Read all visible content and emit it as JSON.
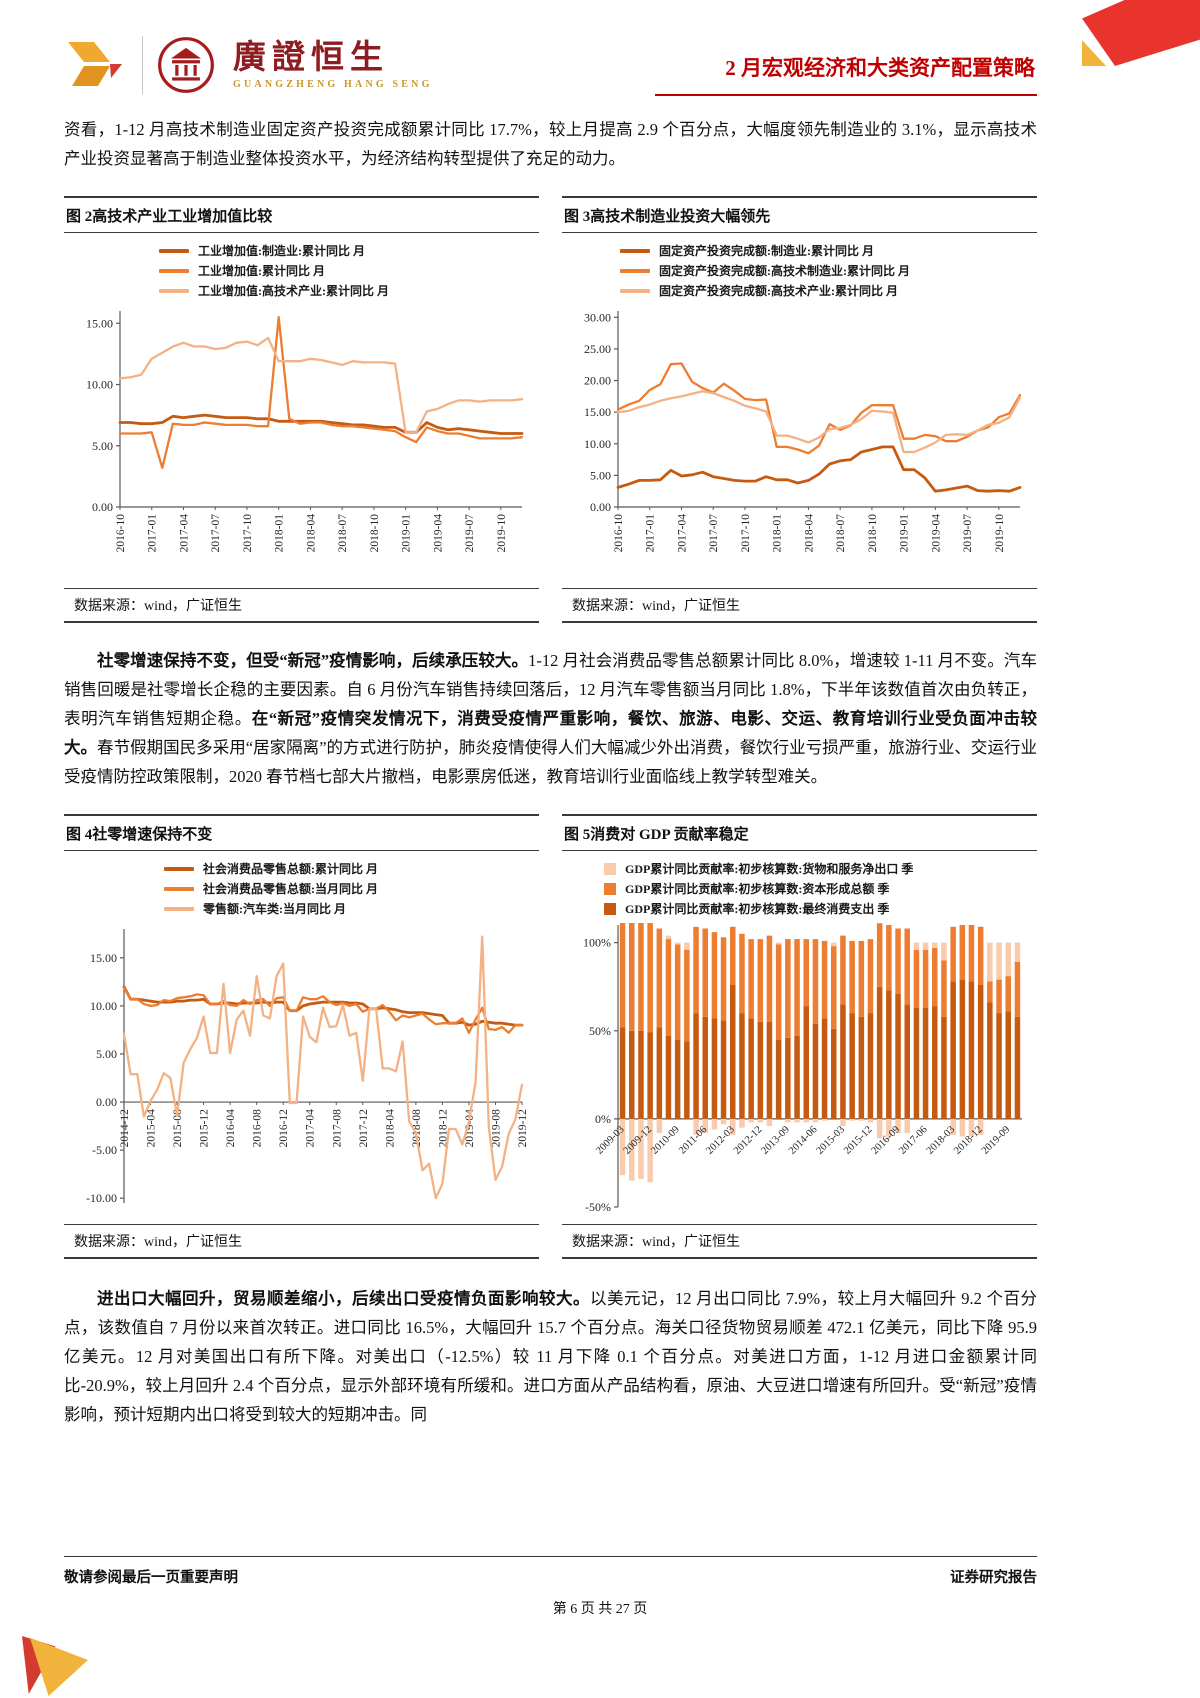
{
  "header": {
    "brand_cn": "廣證恒生",
    "brand_en": "GUANGZHENG HANG SENG",
    "report_title": "2 月宏观经济和大类资产配置策略"
  },
  "paragraphs": {
    "p1": {
      "runs": [
        {
          "text": "资看，1-12 月高技术制造业固定资产投资完成额累计同比 17.7%，较上月提高 2.9 个百分点，大幅度领先制造业的 3.1%，显示高技术产业投资显著高于制造业整体投资水平，为经济结构转型提供了充足的动力。"
        }
      ]
    },
    "p2": {
      "runs": [
        {
          "text": "社零增速保持不变，但受“新冠”疫情影响，后续承压较大。"
        },
        {
          "text": "1-12 月社会消费品零售总额累计同比 8.0%，增速较 1-11 月不变。汽车销售回暖是社零增长企稳的主要因素。自 6 月份汽车销售持续回落后，12 月汽车零售额当月同比 1.8%，下半年该数值首次由负转正，表明汽车销售短期企稳。"
        },
        {
          "text": "在“新冠”疫情突发情况下，消费受疫情严重影响，餐饮、旅游、电影、交运、教育培训行业受负面冲击较大。"
        },
        {
          "text": "春节假期国民多采用“居家隔离”的方式进行防护，肺炎疫情使得人们大幅减少外出消费，餐饮行业亏损严重，旅游行业、交运行业受疫情防控政策限制，2020 春节档七部大片撤档，电影票房低迷，教育培训行业面临线上教学转型难关。"
        }
      ]
    },
    "p3": {
      "runs": [
        {
          "text": "进出口大幅回升，贸易顺差缩小，后续出口受疫情负面影响较大。"
        },
        {
          "text": "以美元记，12 月出口同比 7.9%，较上月大幅回升 9.2 个百分点，该数值自 7 月份以来首次转正。进口同比 16.5%，大幅回升 15.7 个百分点。海关口径货物贸易顺差 472.1 亿美元，同比下降 95.9 亿美元。12 月对美国出口有所下降。对美出口（-12.5%）较 11 月下降 0.1 个百分点。对美进口方面，1-12 月进口金额累计同比-20.9%，较上月回升 2.4 个百分点，显示外部环境有所缓和。进口方面从产品结构看，原油、大豆进口增速有所回升。受“新冠”疫情影响，预计短期内出口将受到较大的短期冲击。同"
        }
      ]
    }
  },
  "figures": [
    {
      "title": "图 2高技术产业工业增加值比较",
      "source": "数据来源：wind，广证恒生"
    },
    {
      "title": "图 3高技术制造业投资大幅领先",
      "source": "数据来源：wind，广证恒生"
    },
    {
      "title": "图 4社零增速保持不变",
      "source": "数据来源：wind，广证恒生"
    },
    {
      "title": "图 5消费对 GDP 贡献率稳定",
      "source": "数据来源：wind，广证恒生"
    }
  ],
  "footer": {
    "left": "敬请参阅最后一页重要声明",
    "right": "证券研究报告",
    "page_info": "第 6 页 共 27 页"
  },
  "colors": {
    "accent_red": "#C00000",
    "brand_red": "#8E1D22",
    "brand_gold": "#C9972B",
    "orange_dark": "#C55A11",
    "orange_mid": "#ED7D31",
    "orange_light": "#F4B183",
    "orange_pale": "#F8CBAD"
  },
  "chart_data": [
    {
      "type": "line",
      "title": "高技术产业工业增加值比较",
      "ylim": [
        0,
        16
      ],
      "yticks": [
        0,
        5,
        10,
        15
      ],
      "yfmt": "fixed2",
      "tick_step": 3,
      "grid": false,
      "legend_position": "top",
      "x": [
        "2016-10",
        "2016-11",
        "2016-12",
        "2017-01",
        "2017-02",
        "2017-03",
        "2017-04",
        "2017-05",
        "2017-06",
        "2017-07",
        "2017-08",
        "2017-09",
        "2017-10",
        "2017-11",
        "2017-12",
        "2018-01",
        "2018-02",
        "2018-03",
        "2018-04",
        "2018-05",
        "2018-06",
        "2018-07",
        "2018-08",
        "2018-09",
        "2018-10",
        "2018-11",
        "2018-12",
        "2019-01",
        "2019-02",
        "2019-03",
        "2019-04",
        "2019-05",
        "2019-06",
        "2019-07",
        "2019-08",
        "2019-09",
        "2019-10",
        "2019-11",
        "2019-12"
      ],
      "series": [
        {
          "name": "工业增加值:制造业:累计同比 月",
          "color": "#C55A11",
          "values": [
            6.9,
            6.9,
            6.8,
            6.8,
            6.9,
            7.4,
            7.3,
            7.4,
            7.5,
            7.4,
            7.3,
            7.3,
            7.3,
            7.2,
            7.2,
            7.0,
            7.0,
            7.0,
            7.0,
            7.0,
            6.9,
            6.8,
            6.7,
            6.7,
            6.6,
            6.5,
            6.5,
            6.1,
            6.1,
            6.9,
            6.5,
            6.3,
            6.4,
            6.3,
            6.2,
            6.1,
            6.0,
            6.0,
            6.0
          ]
        },
        {
          "name": "工业增加值:累计同比 月",
          "color": "#ED7D31",
          "values": [
            6.0,
            6.0,
            6.0,
            6.1,
            3.2,
            6.8,
            6.7,
            6.7,
            6.9,
            6.8,
            6.7,
            6.7,
            6.7,
            6.6,
            6.6,
            15.5,
            7.2,
            6.8,
            6.9,
            6.9,
            6.7,
            6.6,
            6.6,
            6.5,
            6.4,
            6.3,
            6.2,
            5.7,
            5.3,
            6.5,
            6.2,
            6.0,
            6.0,
            5.8,
            5.6,
            5.6,
            5.6,
            5.6,
            5.7
          ]
        },
        {
          "name": "工业增加值:高技术产业:累计同比 月",
          "color": "#F4B183",
          "values": [
            10.5,
            10.6,
            10.8,
            12.1,
            12.6,
            13.1,
            13.4,
            13.1,
            13.1,
            12.9,
            13.0,
            13.4,
            13.5,
            13.2,
            13.8,
            11.9,
            11.9,
            11.9,
            12.1,
            12.0,
            11.8,
            11.6,
            11.9,
            11.8,
            11.8,
            11.8,
            11.7,
            6.1,
            6.1,
            7.8,
            8.0,
            8.4,
            8.7,
            8.7,
            8.6,
            8.7,
            8.7,
            8.7,
            8.8
          ]
        }
      ]
    },
    {
      "type": "line",
      "title": "高技术制造业投资大幅领先",
      "ylim": [
        0,
        31
      ],
      "yticks": [
        0,
        5,
        10,
        15,
        20,
        25,
        30
      ],
      "yfmt": "fixed2",
      "tick_step": 3,
      "grid": false,
      "legend_position": "top",
      "x": [
        "2016-10",
        "2016-11",
        "2016-12",
        "2017-01",
        "2017-02",
        "2017-03",
        "2017-04",
        "2017-05",
        "2017-06",
        "2017-07",
        "2017-08",
        "2017-09",
        "2017-10",
        "2017-11",
        "2017-12",
        "2018-01",
        "2018-02",
        "2018-03",
        "2018-04",
        "2018-05",
        "2018-06",
        "2018-07",
        "2018-08",
        "2018-09",
        "2018-10",
        "2018-11",
        "2018-12",
        "2019-01",
        "2019-02",
        "2019-03",
        "2019-04",
        "2019-05",
        "2019-06",
        "2019-07",
        "2019-08",
        "2019-09",
        "2019-10",
        "2019-11",
        "2019-12"
      ],
      "series": [
        {
          "name": "固定资产投资完成额:制造业:累计同比 月",
          "color": "#C55A11",
          "values": [
            3.1,
            3.6,
            4.2,
            4.2,
            4.3,
            5.8,
            4.9,
            5.1,
            5.5,
            4.8,
            4.5,
            4.2,
            4.1,
            4.1,
            4.8,
            4.3,
            4.3,
            3.8,
            4.2,
            5.2,
            6.8,
            7.3,
            7.5,
            8.7,
            9.1,
            9.5,
            9.5,
            5.9,
            5.9,
            4.6,
            2.5,
            2.7,
            3.0,
            3.3,
            2.6,
            2.5,
            2.6,
            2.5,
            3.1
          ]
        },
        {
          "name": "固定资产投资完成额:高技术制造业:累计同比 月",
          "color": "#ED7D31",
          "values": [
            15.4,
            16.2,
            16.8,
            18.5,
            19.4,
            22.6,
            22.7,
            19.8,
            18.8,
            18.1,
            19.5,
            18.4,
            17.1,
            16.9,
            17.0,
            9.5,
            9.5,
            9.1,
            8.5,
            9.7,
            13.1,
            12.2,
            12.9,
            14.9,
            16.1,
            16.1,
            16.1,
            10.8,
            10.8,
            11.4,
            11.2,
            10.4,
            10.4,
            11.1,
            12.1,
            12.6,
            14.2,
            14.8,
            17.7
          ]
        },
        {
          "name": "固定资产投资完成额:高技术产业:累计同比 月",
          "color": "#F4B183",
          "values": [
            15.0,
            15.2,
            15.8,
            16.2,
            16.8,
            17.2,
            17.5,
            17.9,
            18.3,
            18.0,
            17.4,
            16.8,
            16.0,
            15.6,
            15.1,
            11.3,
            11.3,
            10.8,
            10.2,
            11.0,
            12.3,
            12.5,
            13.0,
            13.9,
            15.2,
            15.1,
            14.9,
            8.7,
            8.7,
            9.4,
            10.2,
            11.4,
            11.5,
            11.4,
            12.1,
            13.0,
            13.3,
            14.2,
            17.3
          ]
        }
      ]
    },
    {
      "type": "line",
      "title": "社零增速保持不变",
      "ylim": [
        -10.5,
        18
      ],
      "yticks": [
        -10,
        -5,
        0,
        5,
        10,
        15
      ],
      "yfmt": "fixed2",
      "tick_step": 4,
      "grid": false,
      "legend_position": "top",
      "x": [
        "2014-12",
        "2015-01",
        "2015-02",
        "2015-03",
        "2015-04",
        "2015-05",
        "2015-06",
        "2015-07",
        "2015-08",
        "2015-09",
        "2015-10",
        "2015-11",
        "2015-12",
        "2016-01",
        "2016-02",
        "2016-03",
        "2016-04",
        "2016-05",
        "2016-06",
        "2016-07",
        "2016-08",
        "2016-09",
        "2016-10",
        "2016-11",
        "2016-12",
        "2017-01",
        "2017-02",
        "2017-03",
        "2017-04",
        "2017-05",
        "2017-06",
        "2017-07",
        "2017-08",
        "2017-09",
        "2017-10",
        "2017-11",
        "2017-12",
        "2018-01",
        "2018-02",
        "2018-03",
        "2018-04",
        "2018-05",
        "2018-06",
        "2018-07",
        "2018-08",
        "2018-09",
        "2018-10",
        "2018-11",
        "2018-12",
        "2019-01",
        "2019-02",
        "2019-03",
        "2019-04",
        "2019-05",
        "2019-06",
        "2019-07",
        "2019-08",
        "2019-09",
        "2019-10",
        "2019-11",
        "2019-12"
      ],
      "series": [
        {
          "name": "社会消费品零售总额:累计同比 月",
          "color": "#C55A11",
          "values": [
            12.0,
            10.7,
            10.7,
            10.6,
            10.5,
            10.4,
            10.4,
            10.4,
            10.5,
            10.5,
            10.6,
            10.6,
            10.7,
            10.2,
            10.2,
            10.3,
            10.3,
            10.2,
            10.3,
            10.3,
            10.3,
            10.4,
            10.3,
            10.4,
            10.4,
            9.5,
            9.5,
            10.0,
            10.2,
            10.3,
            10.4,
            10.4,
            10.4,
            10.4,
            10.3,
            10.3,
            10.2,
            9.7,
            9.7,
            9.8,
            9.7,
            9.6,
            9.4,
            9.3,
            9.3,
            9.3,
            9.2,
            9.1,
            9.0,
            8.2,
            8.2,
            8.3,
            8.0,
            8.1,
            8.4,
            8.3,
            8.2,
            8.2,
            8.1,
            8.0,
            8.0
          ]
        },
        {
          "name": "社会消费品零售总额:当月同比 月",
          "color": "#ED7D31",
          "values": [
            11.9,
            10.7,
            10.7,
            10.2,
            10.0,
            10.1,
            10.6,
            10.5,
            10.8,
            10.9,
            11.0,
            11.2,
            11.1,
            10.2,
            10.2,
            10.5,
            10.1,
            10.0,
            10.6,
            10.2,
            10.6,
            10.7,
            10.0,
            10.8,
            10.9,
            9.5,
            9.5,
            10.9,
            10.7,
            10.7,
            11.0,
            10.4,
            10.1,
            10.3,
            10.0,
            10.2,
            9.4,
            9.7,
            9.7,
            10.1,
            9.4,
            8.5,
            9.0,
            8.8,
            9.0,
            9.2,
            8.6,
            8.1,
            8.2,
            8.2,
            8.2,
            8.7,
            7.2,
            8.6,
            9.8,
            7.6,
            7.5,
            7.8,
            7.2,
            8.0,
            8.0
          ]
        },
        {
          "name": "零售额:汽车类:当月同比 月",
          "color": "#F4B183",
          "values": [
            7.1,
            2.9,
            2.9,
            -1.5,
            0.1,
            1.3,
            3.0,
            2.5,
            -1.4,
            4.1,
            5.5,
            6.7,
            8.9,
            5.1,
            5.1,
            12.3,
            5.1,
            8.6,
            9.5,
            6.9,
            13.1,
            9.0,
            8.7,
            13.1,
            14.4,
            -0.1,
            -0.1,
            8.9,
            6.8,
            6.2,
            9.8,
            7.8,
            7.9,
            10.1,
            6.9,
            7.2,
            2.2,
            9.7,
            9.7,
            3.5,
            3.5,
            3.2,
            6.3,
            -2.0,
            -3.2,
            -7.1,
            -6.4,
            -10.0,
            -8.5,
            -2.8,
            -2.8,
            -4.4,
            -2.1,
            2.1,
            17.2,
            -2.6,
            -8.1,
            -6.7,
            -3.3,
            -1.8,
            1.8
          ]
        }
      ]
    },
    {
      "type": "bar",
      "title": "消费对 GDP 贡献率稳定",
      "stacked": true,
      "ylim": [
        -50,
        110
      ],
      "yticks": [
        -50,
        0,
        50,
        100
      ],
      "yfmt": "pct",
      "tick_step": 3,
      "grid": false,
      "legend_position": "top",
      "legend_reverse": true,
      "x": [
        "2009-03",
        "2009-06",
        "2009-09",
        "2009-12",
        "2010-03",
        "2010-06",
        "2010-09",
        "2010-12",
        "2011-03",
        "2011-06",
        "2011-09",
        "2011-12",
        "2012-03",
        "2012-06",
        "2012-09",
        "2012-12",
        "2013-03",
        "2013-06",
        "2013-09",
        "2013-12",
        "2014-03",
        "2014-06",
        "2014-09",
        "2014-12",
        "2015-03",
        "2015-06",
        "2015-09",
        "2015-12",
        "2016-03",
        "2016-06",
        "2016-09",
        "2016-12",
        "2017-03",
        "2017-06",
        "2017-09",
        "2017-12",
        "2018-03",
        "2018-06",
        "2018-09",
        "2018-12",
        "2019-03",
        "2019-06",
        "2019-09",
        "2019-12"
      ],
      "series": [
        {
          "name": "GDP累计同比贡献率:初步核算数:最终消费支出 季",
          "color": "#C55A11",
          "values": [
            52,
            50,
            50,
            49,
            52,
            47,
            45,
            44,
            60,
            58,
            57,
            56,
            76,
            60,
            57,
            55,
            55,
            45,
            46,
            47,
            64,
            54,
            57,
            51,
            65,
            60,
            58,
            60,
            75,
            73,
            71,
            65,
            63,
            63,
            64,
            58,
            78,
            79,
            78,
            76,
            66,
            60,
            61,
            58
          ]
        },
        {
          "name": "GDP累计同比贡献率:初步核算数:资本形成总额 季",
          "color": "#ED7D31",
          "values": [
            80,
            85,
            84,
            87,
            56,
            55,
            54,
            52,
            49,
            50,
            49,
            47,
            33,
            45,
            45,
            47,
            49,
            54,
            56,
            55,
            38,
            48,
            44,
            47,
            39,
            41,
            43,
            42,
            36,
            37,
            37,
            43,
            33,
            33,
            33,
            32,
            31,
            31,
            32,
            33,
            12,
            19,
            20,
            31
          ]
        },
        {
          "name": "GDP累计同比贡献率:初步核算数:货物和服务净出口 季",
          "color": "#F8CBAD",
          "values": [
            -32,
            -35,
            -34,
            -36,
            -8,
            2,
            1,
            4,
            -9,
            -8,
            -6,
            -3,
            -9,
            -5,
            -2,
            -2,
            -4,
            1,
            -2,
            -2,
            -2,
            -2,
            -1,
            2,
            -4,
            -1,
            -1,
            -2,
            -11,
            -10,
            -8,
            -8,
            4,
            4,
            3,
            10,
            -9,
            -10,
            -10,
            -9,
            22,
            21,
            19,
            11
          ]
        }
      ]
    }
  ]
}
